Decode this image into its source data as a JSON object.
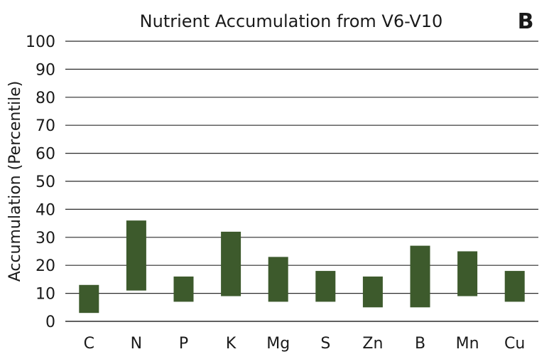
{
  "chart_data": {
    "type": "bar",
    "title": "Nutrient Accumulation from V6-V10",
    "panel_label": "B",
    "xlabel": "",
    "ylabel": "Accumulation (Percentile)",
    "ylim": [
      0,
      100
    ],
    "yticks": [
      0,
      10,
      20,
      30,
      40,
      50,
      60,
      70,
      80,
      90,
      100
    ],
    "grid": true,
    "categories": [
      "C",
      "N",
      "P",
      "K",
      "Mg",
      "S",
      "Zn",
      "B",
      "Mn",
      "Cu"
    ],
    "series": [
      {
        "low": [
          3,
          11,
          7,
          9,
          7,
          7,
          5,
          5,
          9,
          7
        ],
        "high": [
          13,
          36,
          16,
          32,
          23,
          18,
          16,
          27,
          25,
          18
        ]
      }
    ],
    "bar_color": "#3d5a2c",
    "grid_color": "#2b2b2b"
  }
}
